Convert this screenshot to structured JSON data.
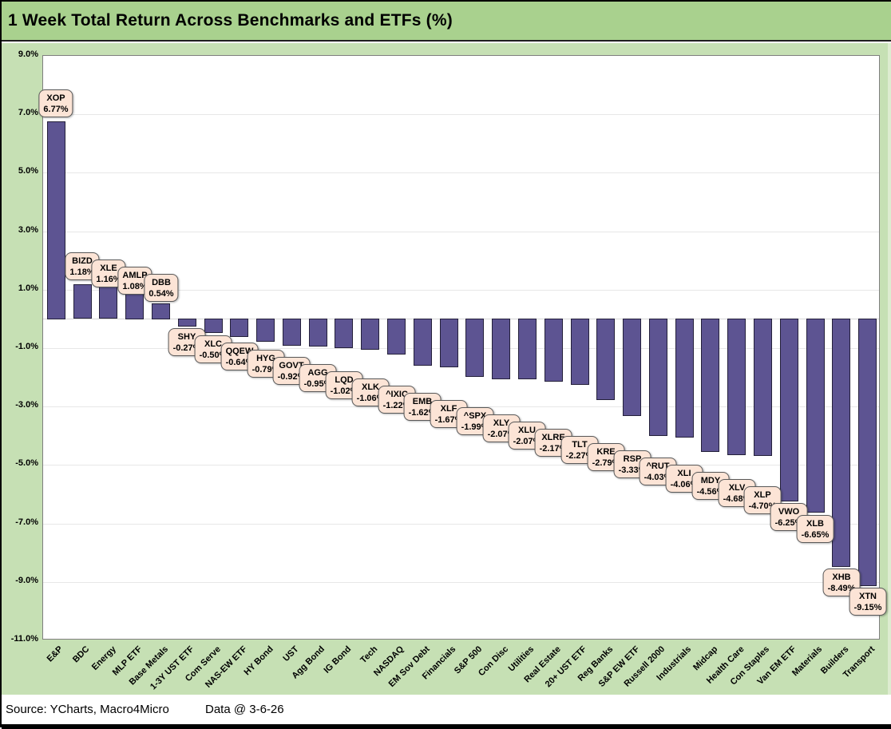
{
  "header": {
    "title": "1 Week Total Return Across Benchmarks and ETFs (%)"
  },
  "footer": {
    "source": "Source: YCharts, Macro4Micro",
    "data_date": "Data @ 3-6-26"
  },
  "colors": {
    "title_bg": "#a9d18e",
    "chart_bg": "#c6e0b4",
    "bar_fill": "#5d5492",
    "bar_border": "#24203a",
    "callout_bg": "#fce4d6",
    "callout_border": "#595959",
    "gridline": "#e7e7e7",
    "plot_border": "#7f7f7f"
  },
  "chart_data": {
    "type": "bar",
    "title": "1 Week Total Return Across Benchmarks and ETFs (%)",
    "xlabel": "",
    "ylabel": "",
    "ylim": [
      -11.0,
      9.0
    ],
    "ytick_interval": 2.0,
    "ytick_labels": [
      "9.0%",
      "7.0%",
      "5.0%",
      "3.0%",
      "1.0%",
      "-1.0%",
      "-3.0%",
      "-5.0%",
      "-7.0%",
      "-9.0%",
      "-11.0%"
    ],
    "grid": true,
    "legend": false,
    "categories": [
      "E&P",
      "BDC",
      "Energy",
      "MLP ETF",
      "Base Metals",
      "1-3Y UST ETF",
      "Com Serve",
      "NAS-EW ETF",
      "HY Bond",
      "UST",
      "Agg Bond",
      "IG Bond",
      "Tech",
      "NASDAQ",
      "EM Sov Debt",
      "Financials",
      "S&P 500",
      "Con Disc",
      "Utilities",
      "Real Estate",
      "20+ UST ETF",
      "Reg Banks",
      "S&P EW ETF",
      "Russell 2000",
      "Industrials",
      "Midcap",
      "Health Care",
      "Con Staples",
      "Van EM ETF",
      "Materials",
      "Builders",
      "Transport"
    ],
    "points": [
      {
        "category": "E&P",
        "ticker": "XOP",
        "value": 6.77,
        "display": "6.77%"
      },
      {
        "category": "BDC",
        "ticker": "BIZD",
        "value": 1.18,
        "display": "1.18%"
      },
      {
        "category": "Energy",
        "ticker": "XLE",
        "value": 1.16,
        "display": "1.16%"
      },
      {
        "category": "MLP ETF",
        "ticker": "AMLP",
        "value": 1.08,
        "display": "1.08%"
      },
      {
        "category": "Base Metals",
        "ticker": "DBB",
        "value": 0.54,
        "display": "0.54%"
      },
      {
        "category": "1-3Y UST ETF",
        "ticker": "SHY",
        "value": -0.27,
        "display": "-0.27%"
      },
      {
        "category": "Com Serve",
        "ticker": "XLC",
        "value": -0.5,
        "display": "-0.50%"
      },
      {
        "category": "NAS-EW ETF",
        "ticker": "QQEW",
        "value": -0.64,
        "display": "-0.64%"
      },
      {
        "category": "HY Bond",
        "ticker": "HYG",
        "value": -0.79,
        "display": "-0.79%"
      },
      {
        "category": "UST",
        "ticker": "GOVT",
        "value": -0.92,
        "display": "-0.92%"
      },
      {
        "category": "Agg Bond",
        "ticker": "AGG",
        "value": -0.95,
        "display": "-0.95%"
      },
      {
        "category": "IG Bond",
        "ticker": "LQD",
        "value": -1.02,
        "display": "-1.02%"
      },
      {
        "category": "Tech",
        "ticker": "XLK",
        "value": -1.06,
        "display": "-1.06%"
      },
      {
        "category": "NASDAQ",
        "ticker": "^IXIC",
        "value": -1.22,
        "display": "-1.22%"
      },
      {
        "category": "EM Sov Debt",
        "ticker": "EMB",
        "value": -1.62,
        "display": "-1.62%"
      },
      {
        "category": "Financials",
        "ticker": "XLF",
        "value": -1.67,
        "display": "-1.67%"
      },
      {
        "category": "S&P 500",
        "ticker": "^SPX",
        "value": -1.99,
        "display": "-1.99%"
      },
      {
        "category": "Con Disc",
        "ticker": "XLY",
        "value": -2.07,
        "display": "-2.07%"
      },
      {
        "category": "Utilities",
        "ticker": "XLU",
        "value": -2.07,
        "display": "-2.07%"
      },
      {
        "category": "Real Estate",
        "ticker": "XLRE",
        "value": -2.17,
        "display": "-2.17%"
      },
      {
        "category": "20+ UST ETF",
        "ticker": "TLT",
        "value": -2.27,
        "display": "-2.27%"
      },
      {
        "category": "Reg Banks",
        "ticker": "KRE",
        "value": -2.79,
        "display": "-2.79%"
      },
      {
        "category": "S&P EW ETF",
        "ticker": "RSP",
        "value": -3.33,
        "display": "-3.33%"
      },
      {
        "category": "Russell 2000",
        "ticker": "^RUT",
        "value": -4.03,
        "display": "-4.03%"
      },
      {
        "category": "Industrials",
        "ticker": "XLI",
        "value": -4.06,
        "display": "-4.06%"
      },
      {
        "category": "Midcap",
        "ticker": "MDY",
        "value": -4.56,
        "display": "-4.56%"
      },
      {
        "category": "Health Care",
        "ticker": "XLV",
        "value": -4.68,
        "display": "-4.68%"
      },
      {
        "category": "Con Staples",
        "ticker": "XLP",
        "value": -4.7,
        "display": "-4.70%"
      },
      {
        "category": "Van EM ETF",
        "ticker": "VWO",
        "value": -6.25,
        "display": "-6.25%"
      },
      {
        "category": "Materials",
        "ticker": "XLB",
        "value": -6.65,
        "display": "-6.65%"
      },
      {
        "category": "Builders",
        "ticker": "XHB",
        "value": -8.49,
        "display": "-8.49%"
      },
      {
        "category": "Transport",
        "ticker": "XTN",
        "value": -9.15,
        "display": "-9.15%"
      }
    ]
  }
}
